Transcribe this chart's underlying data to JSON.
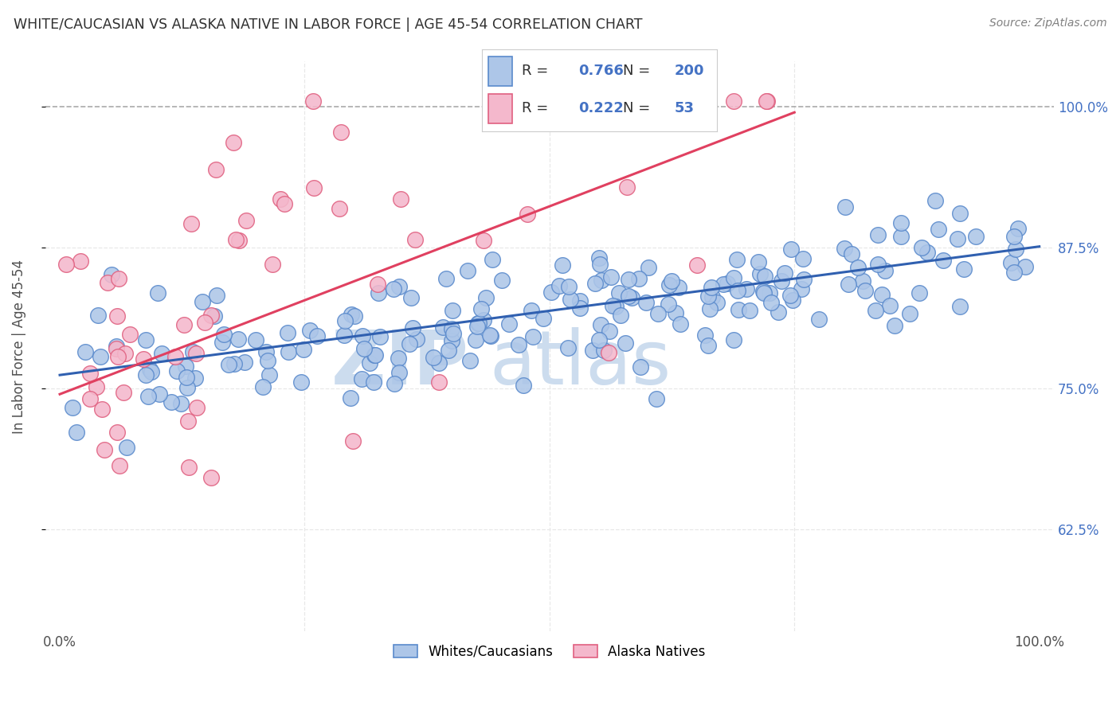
{
  "title": "WHITE/CAUCASIAN VS ALASKA NATIVE IN LABOR FORCE | AGE 45-54 CORRELATION CHART",
  "source": "Source: ZipAtlas.com",
  "ylabel": "In Labor Force | Age 45-54",
  "watermark_zip": "ZIP",
  "watermark_atlas": "atlas",
  "legend_blue_R": "0.766",
  "legend_blue_N": "200",
  "legend_pink_R": "0.222",
  "legend_pink_N": "53",
  "legend_label_blue": "Whites/Caucasians",
  "legend_label_pink": "Alaska Natives",
  "blue_color": "#adc6e8",
  "pink_color": "#f4b8cc",
  "blue_edge_color": "#5a8acc",
  "pink_edge_color": "#e06080",
  "blue_line_color": "#3060b0",
  "pink_line_color": "#e04060",
  "dashed_line_color": "#aaaaaa",
  "grid_color": "#e8e8e8",
  "title_color": "#303030",
  "source_color": "#808080",
  "axis_label_color": "#505050",
  "right_tick_color": "#4472c4",
  "watermark_color": "#ccdcee",
  "background_color": "#ffffff",
  "blue_line_x0": 0.0,
  "blue_line_x1": 1.0,
  "blue_line_y0": 0.762,
  "blue_line_y1": 0.876,
  "pink_line_x0": 0.0,
  "pink_line_x1": 0.75,
  "pink_line_y0": 0.745,
  "pink_line_y1": 0.995,
  "xlim_lo": -0.015,
  "xlim_hi": 1.015,
  "ylim_lo": 0.535,
  "ylim_hi": 1.04
}
